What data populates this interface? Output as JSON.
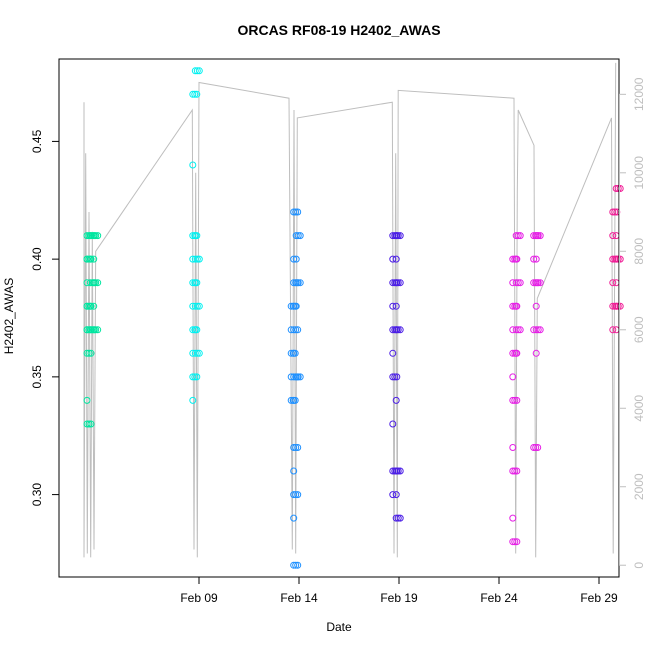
{
  "chart_data": {
    "type": "scatter",
    "title": "ORCAS RF08-19 H2402_AWAS",
    "xlabel": "Date",
    "ylabel": "H2402_AWAS",
    "xlim": [
      "2016-02-02",
      "2016-03-01"
    ],
    "ylim": [
      0.265,
      0.485
    ],
    "y2lim": [
      -300,
      12900
    ],
    "x_ticks": [
      {
        "date": "2016-02-09",
        "label": "Feb 09"
      },
      {
        "date": "2016-02-14",
        "label": "Feb 14"
      },
      {
        "date": "2016-02-19",
        "label": "Feb 19"
      },
      {
        "date": "2016-02-24",
        "label": "Feb 24"
      },
      {
        "date": "2016-02-29",
        "label": "Feb 29"
      }
    ],
    "y_ticks": [
      "0.30",
      "0.35",
      "0.40",
      "0.45"
    ],
    "y2_ticks": [
      "0",
      "2000",
      "4000",
      "6000",
      "8000",
      "10000",
      "12000"
    ],
    "altitude_color": "#bebebe",
    "series": [
      {
        "color": "#00e6a0",
        "points": [
          {
            "x": "2016-02-03 12:00",
            "y": [
              0.41,
              0.4,
              0.4,
              0.39,
              0.38,
              0.38,
              0.37,
              0.37,
              0.36,
              0.34,
              0.33
            ]
          },
          {
            "x": "2016-02-03 16:00",
            "y": [
              0.41,
              0.4,
              0.39,
              0.38,
              0.37
            ]
          },
          {
            "x": "2016-02-03 20:00",
            "y": [
              0.41,
              0.4,
              0.39,
              0.38,
              0.37
            ]
          }
        ]
      },
      {
        "color": "#00f0f0",
        "points": [
          {
            "x": "2016-02-08 19:00",
            "y": [
              0.47,
              0.44,
              0.41,
              0.4,
              0.39,
              0.38,
              0.37,
              0.36,
              0.35,
              0.34
            ]
          },
          {
            "x": "2016-02-08 22:00",
            "y": [
              0.48,
              0.41,
              0.4,
              0.39,
              0.38,
              0.37,
              0.36
            ]
          }
        ]
      },
      {
        "color": "#1e90ff",
        "points": [
          {
            "x": "2016-02-13 17:00",
            "y": [
              0.38,
              0.37,
              0.36,
              0.35,
              0.34
            ]
          },
          {
            "x": "2016-02-13 20:00",
            "y": [
              0.42,
              0.4,
              0.39,
              0.38,
              0.37,
              0.36,
              0.35,
              0.34,
              0.32,
              0.31,
              0.3,
              0.29,
              0.27
            ]
          },
          {
            "x": "2016-02-13 23:00",
            "y": [
              0.41,
              0.4,
              0.39,
              0.38,
              0.35
            ]
          }
        ]
      },
      {
        "color": "#4b1ee6",
        "points": [
          {
            "x": "2016-02-18 19:00",
            "y": [
              0.41,
              0.4,
              0.39,
              0.38,
              0.37,
              0.36,
              0.35,
              0.33,
              0.31,
              0.3
            ]
          },
          {
            "x": "2016-02-18 23:00",
            "y": [
              0.41,
              0.4,
              0.39,
              0.38,
              0.37,
              0.34,
              0.31,
              0.3,
              0.29
            ]
          }
        ]
      },
      {
        "color": "#e61ee6",
        "points": [
          {
            "x": "2016-02-24 19:00",
            "y": [
              0.4,
              0.39,
              0.38,
              0.37,
              0.36,
              0.35,
              0.34,
              0.32,
              0.31,
              0.29,
              0.28
            ]
          },
          {
            "x": "2016-02-24 23:00",
            "y": [
              0.41,
              0.4,
              0.39,
              0.38,
              0.37,
              0.36
            ]
          },
          {
            "x": "2016-02-25 20:00",
            "y": [
              0.41,
              0.4,
              0.39,
              0.37,
              0.32
            ]
          },
          {
            "x": "2016-02-25 23:00",
            "y": [
              0.41,
              0.4,
              0.39,
              0.38,
              0.37,
              0.36
            ]
          }
        ]
      },
      {
        "color": "#f01e96",
        "points": [
          {
            "x": "2016-02-29 19:00",
            "y": [
              0.42,
              0.41,
              0.4,
              0.39,
              0.38,
              0.37
            ]
          },
          {
            "x": "2016-02-29 23:00",
            "y": [
              0.43,
              0.41,
              0.4,
              0.39,
              0.38,
              0.37
            ]
          }
        ]
      }
    ],
    "altitude": [
      {
        "x": "2016-02-03 06:00",
        "alt": 11800
      },
      {
        "x": "2016-02-03 06:00",
        "alt": 200
      },
      {
        "x": "2016-02-03 08:00",
        "alt": 10500
      },
      {
        "x": "2016-02-03 10:00",
        "alt": 300
      },
      {
        "x": "2016-02-03 12:00",
        "alt": 9000
      },
      {
        "x": "2016-02-03 14:00",
        "alt": 200
      },
      {
        "x": "2016-02-03 16:00",
        "alt": 8500
      },
      {
        "x": "2016-02-03 18:00",
        "alt": 400
      },
      {
        "x": "2016-02-03 20:00",
        "alt": 8000
      },
      {
        "x": "2016-02-08 16:00",
        "alt": 11600
      },
      {
        "x": "2016-02-08 18:00",
        "alt": 400
      },
      {
        "x": "2016-02-08 20:00",
        "alt": 10000
      },
      {
        "x": "2016-02-08 22:00",
        "alt": 200
      },
      {
        "x": "2016-02-09 00:00",
        "alt": 12300
      },
      {
        "x": "2016-02-13 12:00",
        "alt": 11900
      },
      {
        "x": "2016-02-13 16:00",
        "alt": 400
      },
      {
        "x": "2016-02-13 18:00",
        "alt": 11600
      },
      {
        "x": "2016-02-13 20:00",
        "alt": 300
      },
      {
        "x": "2016-02-13 22:00",
        "alt": 11400
      },
      {
        "x": "2016-02-18 16:00",
        "alt": 11800
      },
      {
        "x": "2016-02-18 18:00",
        "alt": 300
      },
      {
        "x": "2016-02-18 20:00",
        "alt": 10500
      },
      {
        "x": "2016-02-18 22:00",
        "alt": 200
      },
      {
        "x": "2016-02-18 23:00",
        "alt": 12100
      },
      {
        "x": "2016-02-24 18:00",
        "alt": 11900
      },
      {
        "x": "2016-02-24 20:00",
        "alt": 300
      },
      {
        "x": "2016-02-24 22:00",
        "alt": 9500
      },
      {
        "x": "2016-02-24 23:00",
        "alt": 11600
      },
      {
        "x": "2016-02-25 18:00",
        "alt": 10700
      },
      {
        "x": "2016-02-25 20:00",
        "alt": 200
      },
      {
        "x": "2016-02-25 22:00",
        "alt": 6800
      },
      {
        "x": "2016-02-29 15:00",
        "alt": 11400
      },
      {
        "x": "2016-02-29 17:00",
        "alt": 300
      },
      {
        "x": "2016-02-29 20:00",
        "alt": 12800
      }
    ]
  }
}
